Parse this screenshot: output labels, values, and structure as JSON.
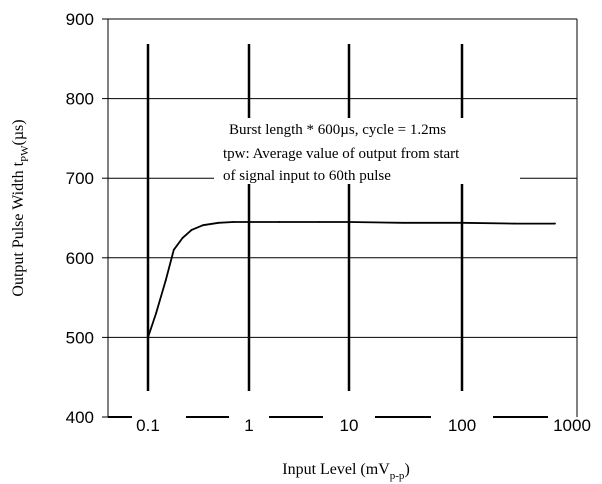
{
  "chart_data": {
    "type": "line",
    "xscale": "log",
    "xlabel": {
      "main": "Input Level (mV",
      "sub": "p-p",
      "tail": ")"
    },
    "ylabel": {
      "main": "Output Pulse Width t",
      "sub": "PW",
      "tail": "(µs)"
    },
    "xlim": [
      0.05,
      1000
    ],
    "ylim": [
      400,
      900
    ],
    "x_ticks": [
      {
        "value": 0.1,
        "label": "0.1"
      },
      {
        "value": 1,
        "label": "1"
      },
      {
        "value": 10,
        "label": "10"
      },
      {
        "value": 100,
        "label": "100"
      },
      {
        "value": 1000,
        "label": "1000"
      }
    ],
    "y_ticks": [
      {
        "value": 400,
        "label": "400"
      },
      {
        "value": 500,
        "label": "500"
      },
      {
        "value": 600,
        "label": "600"
      },
      {
        "value": 700,
        "label": "700"
      },
      {
        "value": 800,
        "label": "800"
      },
      {
        "value": 900,
        "label": "900"
      }
    ],
    "grid": true,
    "annotations": [
      "Burst length * 600µs, cycle = 1.2ms",
      "tpw: Average value of output from start",
      "of signal input to 60th pulse"
    ],
    "series": [
      {
        "x": [
          0.1,
          0.12,
          0.15,
          0.18,
          0.22,
          0.27,
          0.35,
          0.5,
          0.7,
          1,
          2,
          5,
          10,
          30,
          100,
          300,
          700
        ],
        "y": [
          500,
          530,
          572,
          610,
          625,
          635,
          641,
          644,
          645,
          645,
          645,
          645,
          645,
          644,
          644,
          643,
          643
        ]
      }
    ]
  }
}
